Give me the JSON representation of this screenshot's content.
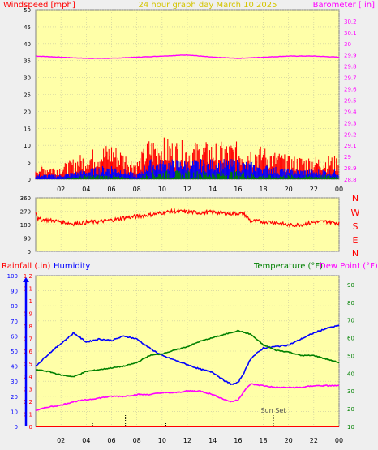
{
  "header": {
    "left": "Windspeed [mph]",
    "center": "24 hour graph day   March 10 2025",
    "right": "Barometer [ in]"
  },
  "panel3_labels": {
    "rainfall": "Rainfall (.in)",
    "humidity": "Humidity",
    "temperature": "Temperature (°F)",
    "dewpoint": "Dew Point (°F)",
    "sunset": "Sun Set"
  },
  "direction_labels": [
    "N",
    "W",
    "S",
    "E",
    "N"
  ],
  "colors": {
    "plot_bg": "#ffffa8",
    "frame_bg": "#efefef",
    "wind": "#ff0000",
    "gust_blue": "#0000ff",
    "gust_green": "#008000",
    "barometer": "#ff00ff",
    "direction": "#ff0000",
    "humidity": "#0000ff",
    "temperature": "#008000",
    "dewpoint": "#ff00ff",
    "rain": "#ff0000",
    "grid": "#c8c8a0"
  },
  "x_ticks": [
    "02",
    "04",
    "06",
    "08",
    "10",
    "12",
    "14",
    "16",
    "18",
    "20",
    "22",
    "00"
  ],
  "chart_data": [
    {
      "type": "line",
      "title": "24 hour graph day   March 10 2025",
      "ylabel": "Windspeed [mph]",
      "ylim": [
        0,
        50
      ],
      "y_ticks": [
        "0",
        "5",
        "10",
        "15",
        "20",
        "25",
        "30",
        "35",
        "40",
        "45",
        "50"
      ],
      "y2label": "Barometer [ in]",
      "y2lim": [
        28.8,
        30.3
      ],
      "y2_ticks": [
        "28.8",
        "28.9",
        "29",
        "29.1",
        "29.2",
        "29.3",
        "29.4",
        "29.5",
        "29.6",
        "29.7",
        "29.8",
        "29.9",
        "30",
        "30.1",
        "30.2"
      ],
      "series": [
        {
          "name": "Barometer",
          "axis": "y2",
          "x": [
            0,
            2,
            4,
            6,
            8,
            10,
            12,
            14,
            16,
            18,
            20,
            22,
            24
          ],
          "y": [
            29.89,
            29.88,
            29.87,
            29.87,
            29.88,
            29.89,
            29.9,
            29.88,
            29.87,
            29.88,
            29.89,
            29.89,
            29.88
          ]
        },
        {
          "name": "Windspeed gust",
          "axis": "y",
          "x": [
            0,
            2,
            4,
            6,
            8,
            9,
            10,
            12,
            14,
            16,
            18,
            20,
            22,
            24
          ],
          "y": [
            3,
            3,
            6,
            8,
            4,
            9,
            9,
            8,
            8,
            8,
            7,
            5,
            5,
            5
          ]
        },
        {
          "name": "Windspeed avg",
          "axis": "y",
          "x": [
            0,
            2,
            4,
            6,
            8,
            9,
            10,
            12,
            14,
            16,
            18,
            20,
            22,
            24
          ],
          "y": [
            1,
            1,
            2,
            3,
            1,
            4,
            4,
            4,
            4,
            4,
            3,
            2,
            2,
            2
          ]
        },
        {
          "name": "Windspeed low",
          "axis": "y",
          "x": [
            0,
            2,
            4,
            6,
            8,
            9,
            10,
            12,
            14,
            16,
            18,
            20,
            22,
            24
          ],
          "y": [
            0,
            0,
            1,
            1,
            0,
            2,
            2,
            2,
            2,
            2,
            1,
            1,
            1,
            1
          ]
        }
      ]
    },
    {
      "type": "line",
      "ylim": [
        0,
        360
      ],
      "y_ticks": [
        "0",
        "90",
        "180",
        "270",
        "360"
      ],
      "series": [
        {
          "name": "Wind direction",
          "x": [
            0,
            0.2,
            1,
            2,
            3,
            4,
            5,
            6,
            7,
            8,
            9,
            10,
            11,
            12,
            13,
            14,
            15,
            16,
            16.5,
            17,
            18,
            19,
            20,
            21,
            22,
            23,
            24
          ],
          "y": [
            270,
            215,
            210,
            200,
            185,
            195,
            200,
            210,
            225,
            235,
            245,
            260,
            270,
            265,
            260,
            265,
            255,
            255,
            250,
            205,
            200,
            195,
            175,
            180,
            195,
            200,
            190
          ]
        }
      ]
    },
    {
      "type": "line",
      "ylim": [
        0,
        100
      ],
      "y_ticks": [
        "0",
        "10",
        "20",
        "30",
        "40",
        "50",
        "60",
        "70",
        "80",
        "90",
        "100"
      ],
      "rain_ticks": [
        "0",
        "0.1",
        "0.2",
        "0.3",
        "0.4",
        "0.5",
        "0.6",
        "0.7",
        "0.8",
        "0.9",
        "1",
        "1.1",
        "1.2"
      ],
      "rain_lim": [
        0,
        1.2
      ],
      "temp_ticks": [
        "10",
        "20",
        "30",
        "40",
        "50",
        "60",
        "70",
        "80",
        "90"
      ],
      "temp_lim": [
        10,
        95
      ],
      "series": [
        {
          "name": "Humidity",
          "axis": "y",
          "x": [
            0,
            1,
            2,
            3,
            4,
            5,
            6,
            7,
            8,
            9,
            10,
            11,
            12,
            13,
            14,
            15,
            15.5,
            16,
            16.5,
            17,
            18,
            19,
            20,
            21,
            22,
            23,
            24
          ],
          "y": [
            40,
            48,
            55,
            62,
            56,
            58,
            57,
            60,
            58,
            52,
            47,
            44,
            41,
            38,
            36,
            30,
            28,
            29,
            36,
            45,
            52,
            53,
            54,
            58,
            62,
            65,
            67
          ]
        },
        {
          "name": "Temperature (°F)",
          "axis": "temp",
          "x": [
            0,
            1,
            2,
            3,
            4,
            5,
            6,
            7,
            8,
            9,
            10,
            11,
            12,
            13,
            14,
            15,
            16,
            17,
            18,
            19,
            20,
            21,
            22,
            23,
            24
          ],
          "y": [
            42,
            41,
            39,
            38,
            41,
            42,
            43,
            44,
            46,
            50,
            51,
            53,
            55,
            58,
            60,
            62,
            64,
            62,
            56,
            53,
            52,
            50,
            50,
            48,
            46
          ]
        },
        {
          "name": "Dew Point (°F)",
          "axis": "temp",
          "x": [
            0,
            1,
            2,
            3,
            4,
            5,
            6,
            7,
            8,
            9,
            10,
            11,
            12,
            13,
            14,
            15,
            15.5,
            16,
            16.5,
            17,
            18,
            19,
            20,
            21,
            22,
            23,
            24
          ],
          "y": [
            19,
            21,
            22,
            24,
            25,
            26,
            27,
            27,
            28,
            28,
            29,
            29,
            30,
            30,
            28,
            25,
            24,
            25,
            30,
            34,
            33,
            32,
            32,
            32,
            33,
            33,
            33
          ]
        },
        {
          "name": "Rainfall (.in)",
          "axis": "rain",
          "x": [
            0,
            24
          ],
          "y": [
            0,
            0
          ]
        }
      ]
    }
  ]
}
